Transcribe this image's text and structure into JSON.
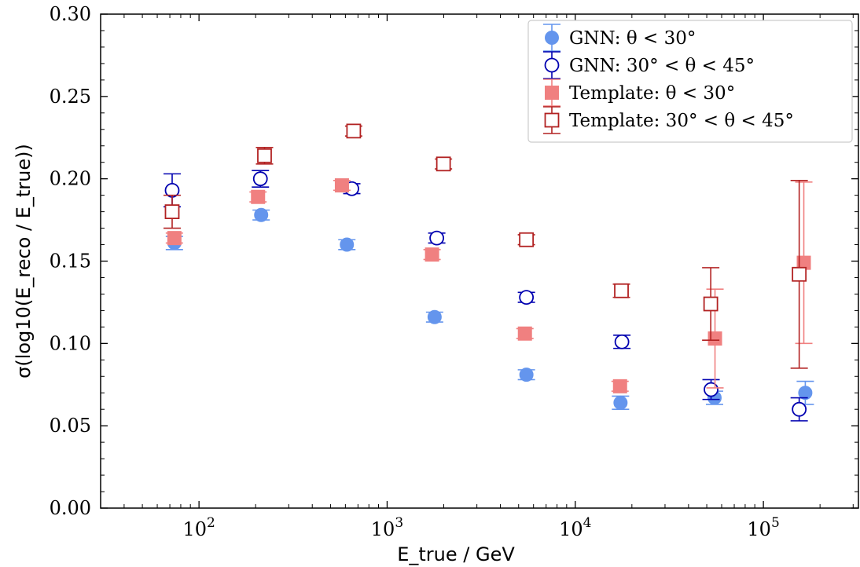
{
  "chart_data": {
    "type": "scatter",
    "xlabel": "E_true / GeV",
    "ylabel": "σ(log10(E_reco / E_true))",
    "x_scale": "log",
    "xlim": [
      30,
      320000
    ],
    "ylim": [
      0.0,
      0.3
    ],
    "y_ticks": [
      "0.00",
      "0.05",
      "0.10",
      "0.15",
      "0.20",
      "0.25",
      "0.30"
    ],
    "x_ticks": [
      {
        "value": 100,
        "base": "10",
        "exp": "2"
      },
      {
        "value": 1000,
        "base": "10",
        "exp": "3"
      },
      {
        "value": 10000,
        "base": "10",
        "exp": "4"
      },
      {
        "value": 100000,
        "base": "10",
        "exp": "5"
      }
    ],
    "grid": false,
    "legend_position": "top-right",
    "series": [
      {
        "name": "GNN: θ < 30°",
        "marker": "circle-filled",
        "color": "#6495ED",
        "points": [
          {
            "x": 74,
            "y": 0.161,
            "err": 0.004
          },
          {
            "x": 214,
            "y": 0.178,
            "err": 0.003
          },
          {
            "x": 611,
            "y": 0.16,
            "err": 0.003
          },
          {
            "x": 1788,
            "y": 0.116,
            "err": 0.003
          },
          {
            "x": 5500,
            "y": 0.081,
            "err": 0.003
          },
          {
            "x": 17400,
            "y": 0.064,
            "err": 0.004
          },
          {
            "x": 55000,
            "y": 0.067,
            "err": 0.004
          },
          {
            "x": 167000,
            "y": 0.07,
            "err": 0.007
          }
        ]
      },
      {
        "name": "GNN: 30° < θ < 45°",
        "marker": "circle-open",
        "color": "#0000B0",
        "points": [
          {
            "x": 72,
            "y": 0.193,
            "err": 0.01
          },
          {
            "x": 212,
            "y": 0.2,
            "err": 0.005
          },
          {
            "x": 649,
            "y": 0.194,
            "err": 0.003
          },
          {
            "x": 1836,
            "y": 0.164,
            "err": 0.003
          },
          {
            "x": 5500,
            "y": 0.128,
            "err": 0.003
          },
          {
            "x": 17700,
            "y": 0.101,
            "err": 0.004
          },
          {
            "x": 52700,
            "y": 0.072,
            "err": 0.006
          },
          {
            "x": 155000,
            "y": 0.06,
            "err": 0.007
          }
        ]
      },
      {
        "name": "Template: θ < 30°",
        "marker": "square-filled",
        "color": "#F08080",
        "points": [
          {
            "x": 74,
            "y": 0.164,
            "err": 0.003
          },
          {
            "x": 206,
            "y": 0.189,
            "err": 0.003
          },
          {
            "x": 575,
            "y": 0.196,
            "err": 0.003
          },
          {
            "x": 1733,
            "y": 0.154,
            "err": 0.003
          },
          {
            "x": 5400,
            "y": 0.106,
            "err": 0.003
          },
          {
            "x": 17300,
            "y": 0.074,
            "err": 0.003
          },
          {
            "x": 55300,
            "y": 0.103,
            "err": 0.03
          },
          {
            "x": 164000,
            "y": 0.149,
            "err": 0.049
          }
        ]
      },
      {
        "name": "Template: 30° < θ < 45°",
        "marker": "square-open",
        "color": "#B22222",
        "points": [
          {
            "x": 72,
            "y": 0.18,
            "err": 0.01
          },
          {
            "x": 223,
            "y": 0.214,
            "err": 0.005
          },
          {
            "x": 664,
            "y": 0.229,
            "err": 0.003
          },
          {
            "x": 1993,
            "y": 0.209,
            "err": 0.003
          },
          {
            "x": 5500,
            "y": 0.163,
            "err": 0.003
          },
          {
            "x": 17600,
            "y": 0.132,
            "err": 0.004
          },
          {
            "x": 52500,
            "y": 0.124,
            "err": 0.022
          },
          {
            "x": 155000,
            "y": 0.142,
            "err": 0.057
          }
        ]
      }
    ]
  }
}
